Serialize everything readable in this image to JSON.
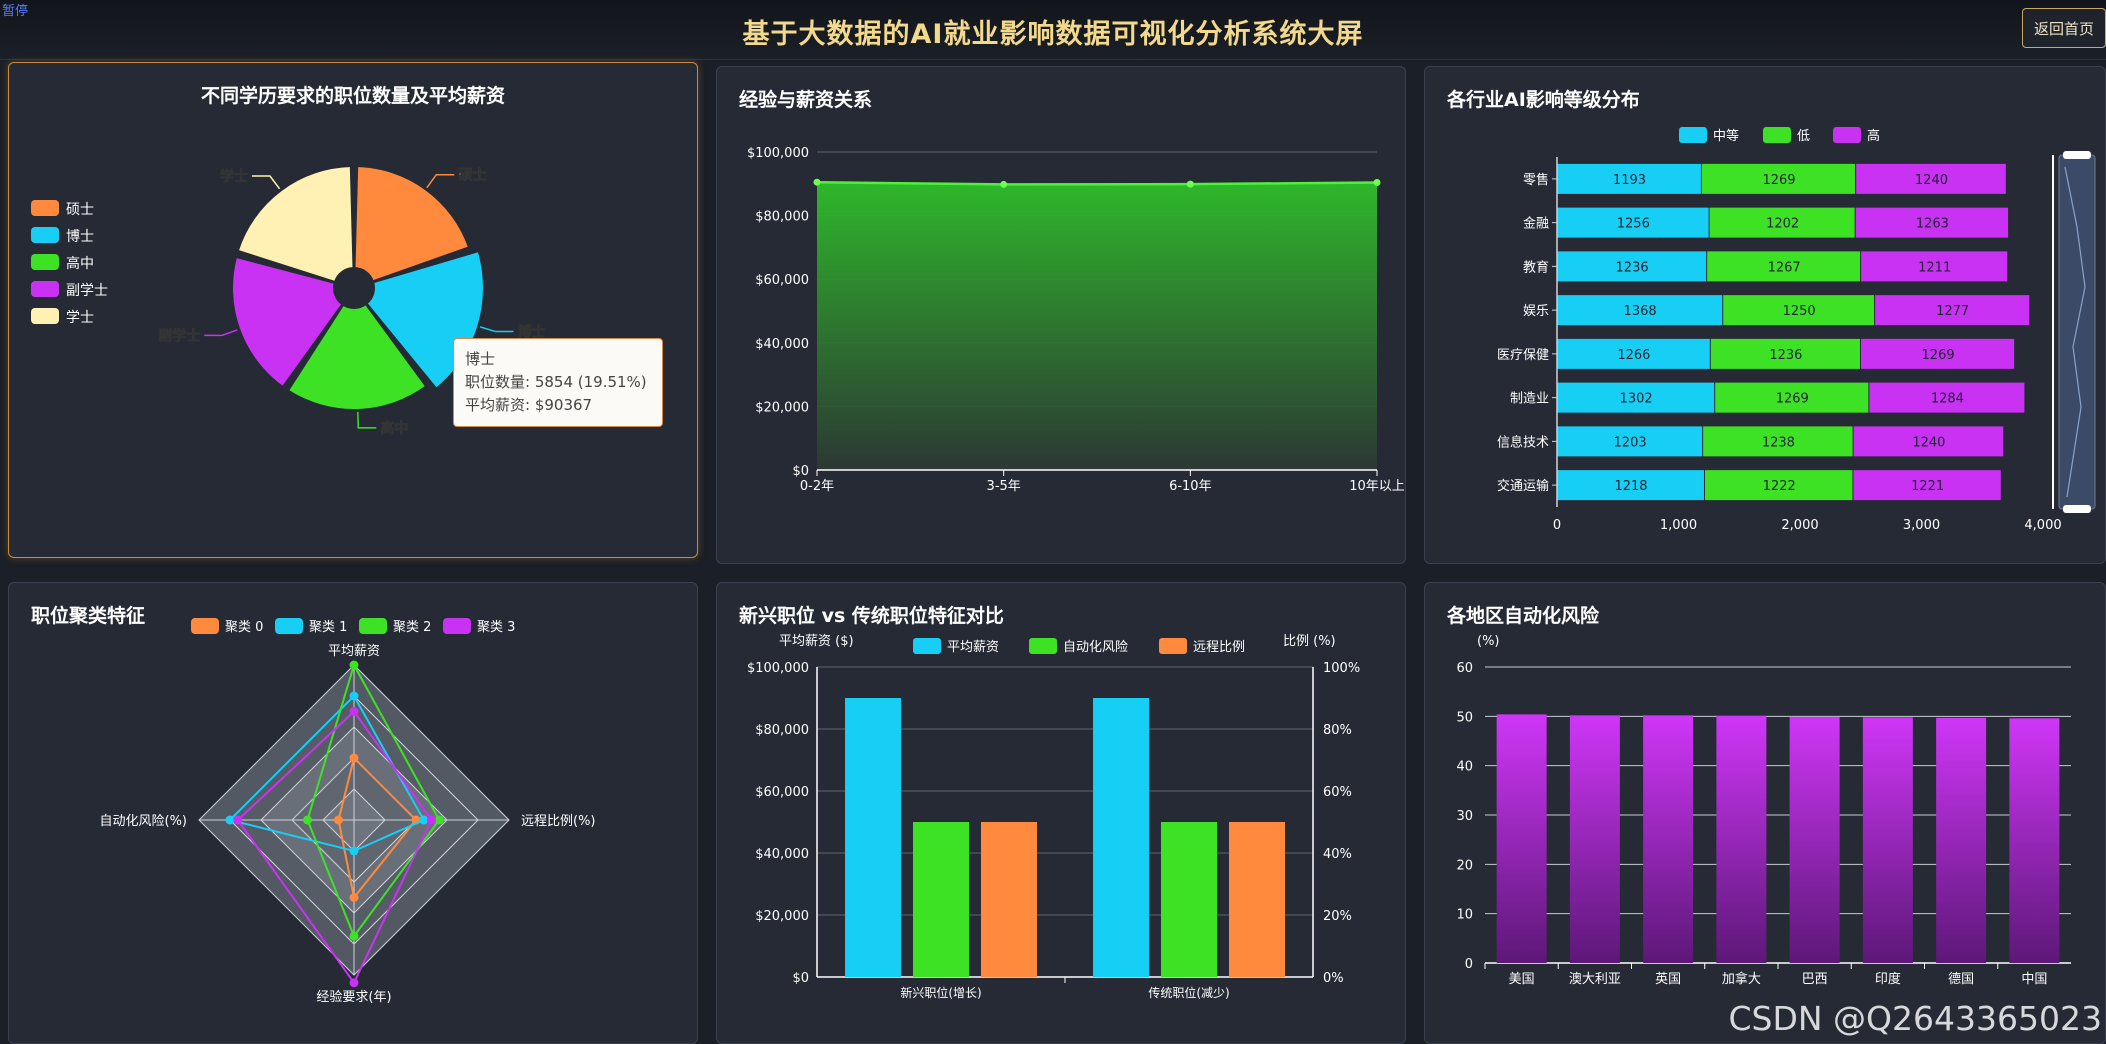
{
  "header": {
    "pause_label": "暂停",
    "title": "基于大数据的AI就业影响数据可视化分析系统大屏",
    "home_button": "返回首页"
  },
  "watermark": "CSDN @Q2643365023",
  "colors": {
    "orange": "#ff8a3d",
    "cyan": "#17cff5",
    "green": "#3de225",
    "purple": "#c932f2",
    "cream": "#fff1b4"
  },
  "panels": {
    "education": {
      "title": "不同学历要求的职位数量及平均薪资",
      "tooltip": {
        "name": "博士",
        "count_label": "职位数量: 5854 (19.51%)",
        "salary_label": "平均薪资: $90367"
      }
    },
    "experience": {
      "title": "经验与薪资关系"
    },
    "industry": {
      "title": "各行业AI影响等级分布"
    },
    "cluster": {
      "title": "职位聚类特征"
    },
    "emerging": {
      "title": "新兴职位 vs 传统职位特征对比"
    },
    "region": {
      "title": "各地区自动化风险"
    }
  },
  "chart_data": [
    {
      "id": "education",
      "type": "pie",
      "legend": [
        "硕士",
        "博士",
        "高中",
        "副学士",
        "学士"
      ],
      "legend_colors": [
        "#ff8a3d",
        "#17cff5",
        "#3de225",
        "#c932f2",
        "#fff1b4"
      ],
      "slices": [
        {
          "name": "硕士",
          "value": 20,
          "color": "#ff8a3d"
        },
        {
          "name": "博士",
          "value": 19.51,
          "color": "#17cff5"
        },
        {
          "name": "高中",
          "value": 20,
          "color": "#3de225"
        },
        {
          "name": "副学士",
          "value": 20,
          "color": "#c932f2"
        },
        {
          "name": "学士",
          "value": 20.49,
          "color": "#fff1b4"
        }
      ],
      "highlighted": "博士"
    },
    {
      "id": "experience",
      "type": "area",
      "categories": [
        "0-2年",
        "3-5年",
        "6-10年",
        "10年以上"
      ],
      "values": [
        90500,
        89800,
        89900,
        90400
      ],
      "ylim": [
        0,
        100000
      ],
      "yticks": [
        "$0",
        "$20,000",
        "$40,000",
        "$60,000",
        "$80,000",
        "$100,000"
      ],
      "grid": true
    },
    {
      "id": "industry",
      "type": "bar",
      "orientation": "horizontal",
      "stacked": true,
      "categories": [
        "零售",
        "金融",
        "教育",
        "娱乐",
        "医疗保健",
        "制造业",
        "信息技术",
        "交通运输"
      ],
      "series": [
        {
          "name": "中等",
          "color": "#17cff5",
          "values": [
            1193,
            1256,
            1236,
            1368,
            1266,
            1302,
            1203,
            1218
          ]
        },
        {
          "name": "低",
          "color": "#3de225",
          "values": [
            1269,
            1202,
            1267,
            1250,
            1236,
            1269,
            1238,
            1222
          ]
        },
        {
          "name": "高",
          "color": "#c932f2",
          "values": [
            1240,
            1263,
            1211,
            1277,
            1269,
            1284,
            1240,
            1221
          ]
        }
      ],
      "xlim": [
        0,
        4000
      ],
      "xticks": [
        "0",
        "1,000",
        "2,000",
        "3,000",
        "4,000"
      ],
      "legend_position": "top"
    },
    {
      "id": "cluster",
      "type": "radar",
      "indicators": [
        "平均薪资",
        "远程比例(%)",
        "经验要求(年)",
        "自动化风险(%)"
      ],
      "series": [
        {
          "name": "聚类 0",
          "color": "#ff8a3d",
          "values": [
            0.4,
            0.4,
            0.5,
            0.1
          ]
        },
        {
          "name": "聚类 1",
          "color": "#17cff5",
          "values": [
            0.8,
            0.45,
            0.2,
            0.8
          ]
        },
        {
          "name": "聚类 2",
          "color": "#3de225",
          "values": [
            1.0,
            0.55,
            0.75,
            0.3
          ]
        },
        {
          "name": "聚类 3",
          "color": "#c932f2",
          "values": [
            0.7,
            0.5,
            1.05,
            0.75
          ]
        }
      ],
      "legend_position": "top"
    },
    {
      "id": "emerging",
      "type": "bar",
      "categories": [
        "新兴职位(增长)",
        "传统职位(减少)"
      ],
      "series": [
        {
          "name": "平均薪资",
          "color": "#17cff5",
          "axis": "left",
          "values": [
            90000,
            90000
          ]
        },
        {
          "name": "自动化风险",
          "color": "#3de225",
          "axis": "right",
          "values": [
            50,
            50
          ]
        },
        {
          "name": "远程比例",
          "color": "#ff8a3d",
          "axis": "right",
          "values": [
            50,
            50
          ]
        }
      ],
      "ylabel_left": "平均薪资 ($)",
      "ylabel_right": "比例 (%)",
      "ylim_left": [
        0,
        100000
      ],
      "ylim_right": [
        0,
        100
      ],
      "yticks_left": [
        "$0",
        "$20,000",
        "$40,000",
        "$60,000",
        "$80,000",
        "$100,000"
      ],
      "yticks_right": [
        "0%",
        "20%",
        "40%",
        "60%",
        "80%",
        "100%"
      ]
    },
    {
      "id": "region",
      "type": "bar",
      "categories": [
        "美国",
        "澳大利亚",
        "英国",
        "加拿大",
        "巴西",
        "印度",
        "德国",
        "中国"
      ],
      "values": [
        50.4,
        50.2,
        50.2,
        50.1,
        49.9,
        49.8,
        49.7,
        49.6
      ],
      "ylabel": "(%)",
      "ylim": [
        0,
        60
      ],
      "yticks": [
        "0",
        "10",
        "20",
        "30",
        "40",
        "50",
        "60"
      ],
      "color": "#c932f2"
    }
  ]
}
